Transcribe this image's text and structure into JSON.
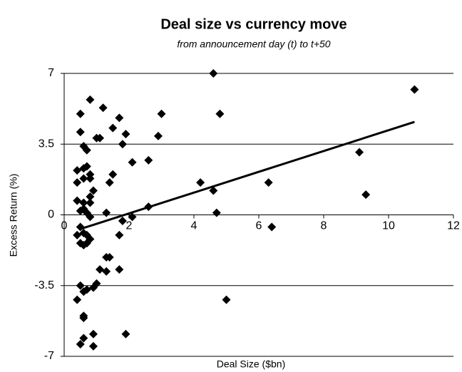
{
  "chart_data": {
    "type": "scatter",
    "title": "Deal size vs currency move",
    "subtitle": "from announcement day (t) to t+50",
    "x_label": "Deal Size ($bn)",
    "y_label": "Excess Return (%)",
    "xlim": [
      0,
      12
    ],
    "xticks": [
      0,
      2,
      4,
      6,
      8,
      10,
      12
    ],
    "ylim": [
      -7,
      7
    ],
    "yticks": [
      7,
      3.5,
      0,
      -3.5,
      -7
    ],
    "grid": true,
    "color": "#000000",
    "x": [
      0.5,
      0.5,
      0.8,
      1.2,
      1.0,
      1.1,
      0.6,
      0.7,
      1.5,
      1.7,
      1.9,
      1.8,
      3.0,
      2.9,
      4.6,
      4.8,
      10.8,
      9.1,
      9.3,
      0.4,
      0.6,
      0.7,
      0.8,
      0.6,
      0.4,
      0.8,
      1.5,
      1.4,
      2.1,
      2.6,
      4.2,
      4.6,
      6.3,
      0.4,
      0.6,
      0.9,
      0.8,
      0.8,
      0.6,
      0.5,
      0.7,
      0.8,
      1.3,
      2.6,
      4.7,
      1.8,
      2.1,
      0.5,
      0.6,
      0.4,
      0.7,
      1.7,
      6.4,
      0.5,
      0.7,
      0.6,
      0.8,
      1.3,
      1.4,
      1.1,
      1.3,
      1.7,
      1.0,
      0.9,
      0.5,
      0.7,
      0.6,
      0.4,
      5.0,
      0.6,
      0.6,
      0.9,
      1.9,
      0.6,
      0.5,
      0.9
    ],
    "values": [
      5.0,
      4.1,
      5.7,
      5.3,
      3.8,
      3.8,
      3.4,
      3.2,
      4.3,
      4.8,
      4.0,
      3.5,
      5.0,
      3.9,
      7.0,
      5.0,
      6.2,
      3.1,
      1.0,
      2.2,
      2.3,
      2.4,
      2.0,
      1.8,
      1.6,
      1.8,
      2.0,
      1.6,
      2.6,
      2.7,
      1.6,
      1.2,
      1.6,
      0.7,
      0.6,
      1.2,
      0.9,
      0.6,
      0.3,
      0.2,
      0.1,
      -0.1,
      0.1,
      0.4,
      0.1,
      -0.3,
      -0.1,
      -0.6,
      -0.9,
      -1.0,
      -1.0,
      -1.0,
      -0.6,
      -1.4,
      -1.4,
      -1.5,
      -1.2,
      -2.1,
      -2.1,
      -2.7,
      -2.8,
      -2.7,
      -3.4,
      -3.6,
      -3.5,
      -3.7,
      -3.8,
      -4.2,
      -4.2,
      -5.0,
      -5.1,
      -5.9,
      -5.9,
      -6.1,
      -6.4,
      -6.5
    ],
    "trendline": {
      "x": [
        0.5,
        10.8
      ],
      "values": [
        -0.7,
        4.6
      ]
    }
  }
}
